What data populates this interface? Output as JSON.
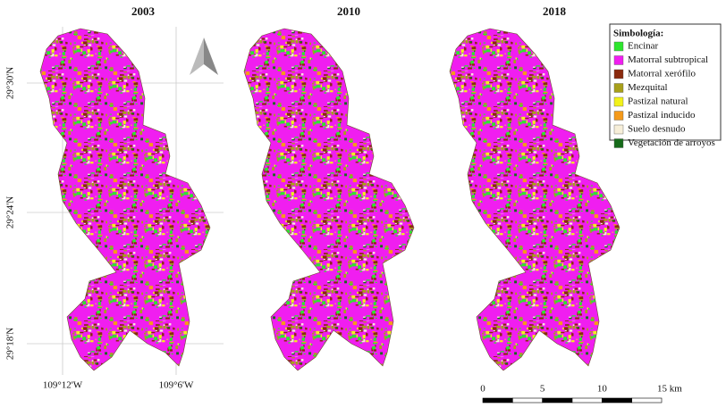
{
  "panels": [
    {
      "title": "2003"
    },
    {
      "title": "2010"
    },
    {
      "title": "2018"
    }
  ],
  "coordinates": {
    "lat": [
      "29°30'N",
      "29°24'N",
      "29°18'N"
    ],
    "lon": [
      "109°12'W",
      "109°6'W"
    ]
  },
  "legend": {
    "title": "Simbología:",
    "items": [
      {
        "label": "Encinar",
        "color": "#2ee62e"
      },
      {
        "label": "Matorral subtropical",
        "color": "#f01ef0"
      },
      {
        "label": "Matorral xerófilo",
        "color": "#8a2a0e"
      },
      {
        "label": "Mezquital",
        "color": "#a8a01a"
      },
      {
        "label": "Pastizal natural",
        "color": "#f2f21a"
      },
      {
        "label": "Pastizal inducido",
        "color": "#f59a1a"
      },
      {
        "label": "Suelo desnudo",
        "color": "#f7efd9"
      },
      {
        "label": "Vegetación de arroyos",
        "color": "#166b1a"
      }
    ]
  },
  "scale_bar": {
    "labels": [
      "0",
      "5",
      "10",
      "15 km"
    ]
  }
}
